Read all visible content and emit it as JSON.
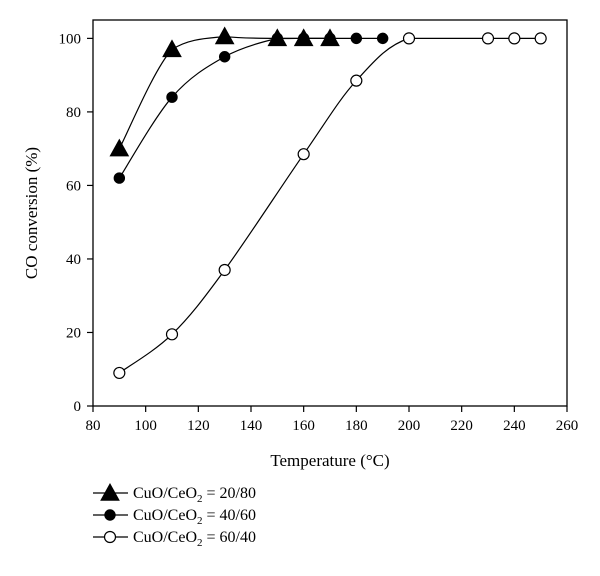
{
  "chart_data": {
    "type": "scatter",
    "xlabel": "Temperature (°C)",
    "ylabel": "CO conversion (%)",
    "xlim": [
      80,
      260
    ],
    "ylim": [
      0,
      105
    ],
    "xticks": [
      "80",
      "100",
      "120",
      "140",
      "160",
      "180",
      "200",
      "220",
      "240",
      "260"
    ],
    "yticks": [
      "0",
      "20",
      "40",
      "60",
      "80",
      "100"
    ],
    "grid": false,
    "legend_position": "bottom-left, below plot",
    "series": [
      {
        "name_prefix": "CuO/CeO",
        "name_sub": "2",
        "name_suffix": " = 20/80",
        "marker": "filled-triangle",
        "color": "#000000",
        "x": [
          90,
          110,
          130,
          150,
          160,
          170
        ],
        "y": [
          70,
          97,
          100.5,
          100,
          100,
          100
        ]
      },
      {
        "name_prefix": "CuO/CeO",
        "name_sub": "2",
        "name_suffix": " = 40/60",
        "marker": "filled-circle",
        "color": "#000000",
        "x": [
          90,
          110,
          130,
          150,
          160,
          170,
          180,
          190
        ],
        "y": [
          62,
          84,
          95,
          100,
          100,
          100,
          100,
          100
        ]
      },
      {
        "name_prefix": "CuO/CeO",
        "name_sub": "2",
        "name_suffix": " = 60/40",
        "marker": "open-circle",
        "color": "#000000",
        "x": [
          90,
          110,
          130,
          160,
          180,
          200,
          230,
          240,
          250
        ],
        "y": [
          9,
          19.5,
          37,
          68.5,
          88.5,
          100,
          100,
          100,
          100
        ]
      }
    ]
  }
}
